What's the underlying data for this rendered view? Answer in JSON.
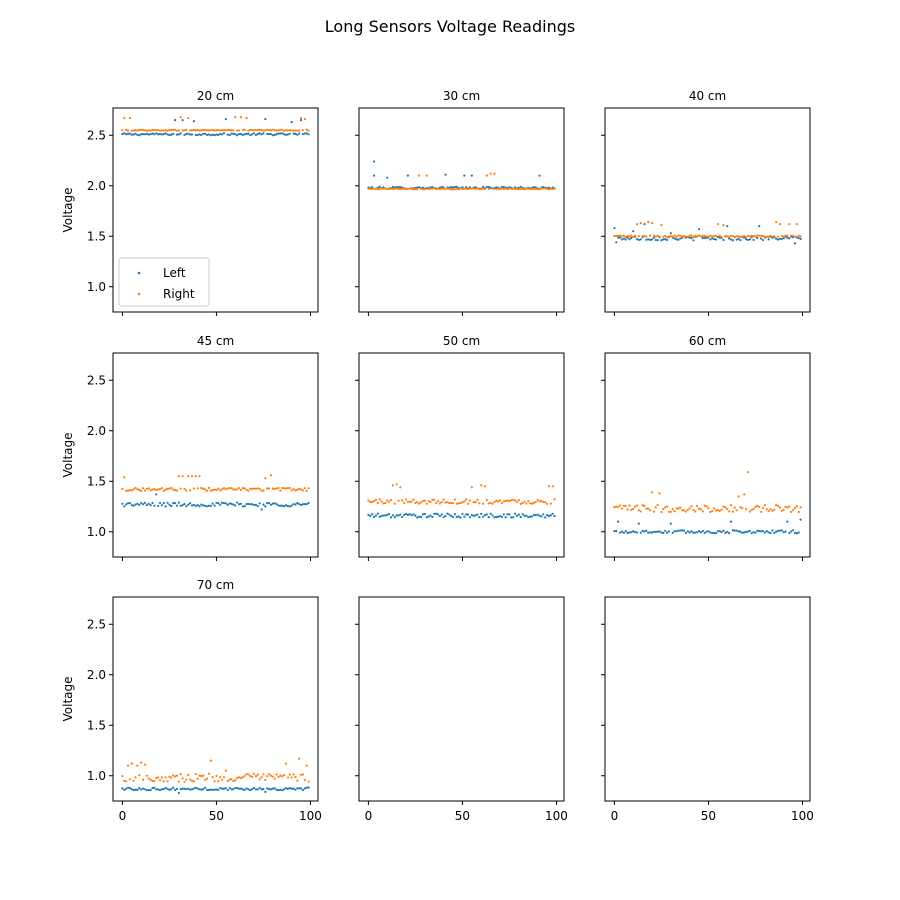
{
  "title": "Long Sensors Voltage Readings",
  "colors": {
    "left": "#1f77b4",
    "right": "#ff7f0e"
  },
  "legend": {
    "placement": "lower-left",
    "entries": [
      "Left",
      "Right"
    ]
  },
  "chart_data": {
    "type": "scatter",
    "layout": "3x3 subplots, shared x and y axes",
    "x": {
      "range": [
        0,
        99
      ],
      "lim": [
        -5,
        104
      ],
      "ticks": [
        0,
        50,
        100
      ],
      "tick_labels": [
        "0",
        "50",
        "100"
      ],
      "label": ""
    },
    "y": {
      "lim": [
        0.75,
        2.77
      ],
      "ticks": [
        1.0,
        1.5,
        2.0,
        2.5
      ],
      "tick_labels": [
        "1.0",
        "1.5",
        "2.0",
        "2.5"
      ],
      "label": "Voltage"
    },
    "panels": [
      {
        "title": "20 cm",
        "series": [
          {
            "name": "Left",
            "base": 2.51,
            "noise": 0.01,
            "spikes": [
              [
                28,
                2.65
              ],
              [
                32,
                2.65
              ],
              [
                38,
                2.64
              ],
              [
                55,
                2.66
              ],
              [
                76,
                2.66
              ],
              [
                90,
                2.63
              ],
              [
                95,
                2.65
              ]
            ]
          },
          {
            "name": "Right",
            "base": 2.55,
            "noise": 0.005,
            "spikes": [
              [
                1,
                2.67
              ],
              [
                4,
                2.67
              ],
              [
                31,
                2.68
              ],
              [
                35,
                2.67
              ],
              [
                60,
                2.68
              ],
              [
                63,
                2.68
              ],
              [
                66,
                2.67
              ],
              [
                95,
                2.67
              ],
              [
                97,
                2.66
              ]
            ]
          }
        ]
      },
      {
        "title": "30 cm",
        "series": [
          {
            "name": "Left",
            "base": 1.98,
            "noise": 0.01,
            "spikes": [
              [
                3,
                2.24
              ],
              [
                3,
                2.1
              ],
              [
                10,
                2.08
              ],
              [
                21,
                2.1
              ],
              [
                41,
                2.11
              ],
              [
                51,
                2.1
              ],
              [
                55,
                2.1
              ],
              [
                91,
                2.1
              ]
            ]
          },
          {
            "name": "Right",
            "base": 1.97,
            "noise": 0.005,
            "spikes": [
              [
                27,
                2.1
              ],
              [
                31,
                2.1
              ],
              [
                63,
                2.1
              ],
              [
                65,
                2.12
              ],
              [
                67,
                2.12
              ]
            ]
          }
        ]
      },
      {
        "title": "40 cm",
        "series": [
          {
            "name": "Left",
            "base": 1.48,
            "noise": 0.02,
            "spikes": [
              [
                0,
                1.58
              ],
              [
                1,
                1.44
              ],
              [
                10,
                1.55
              ],
              [
                16,
                1.62
              ],
              [
                30,
                1.53
              ],
              [
                45,
                1.57
              ],
              [
                60,
                1.6
              ],
              [
                77,
                1.6
              ],
              [
                96,
                1.43
              ]
            ]
          },
          {
            "name": "Right",
            "base": 1.5,
            "noise": 0.008,
            "spikes": [
              [
                12,
                1.62
              ],
              [
                14,
                1.63
              ],
              [
                18,
                1.64
              ],
              [
                20,
                1.63
              ],
              [
                25,
                1.61
              ],
              [
                55,
                1.62
              ],
              [
                58,
                1.61
              ],
              [
                86,
                1.64
              ],
              [
                88,
                1.62
              ],
              [
                93,
                1.62
              ],
              [
                97,
                1.62
              ]
            ]
          }
        ]
      },
      {
        "title": "45 cm",
        "series": [
          {
            "name": "Left",
            "base": 1.27,
            "noise": 0.02,
            "spikes": [
              [
                18,
                1.37
              ],
              [
                74,
                1.22
              ]
            ]
          },
          {
            "name": "Right",
            "base": 1.42,
            "noise": 0.015,
            "spikes": [
              [
                1,
                1.54
              ],
              [
                30,
                1.55
              ],
              [
                32,
                1.55
              ],
              [
                35,
                1.55
              ],
              [
                37,
                1.55
              ],
              [
                39,
                1.55
              ],
              [
                41,
                1.55
              ],
              [
                76,
                1.53
              ],
              [
                79,
                1.56
              ]
            ]
          }
        ]
      },
      {
        "title": "50 cm",
        "series": [
          {
            "name": "Left",
            "base": 1.16,
            "noise": 0.02,
            "spikes": []
          },
          {
            "name": "Right",
            "base": 1.3,
            "noise": 0.025,
            "spikes": [
              [
                13,
                1.46
              ],
              [
                15,
                1.47
              ],
              [
                17,
                1.44
              ],
              [
                55,
                1.44
              ],
              [
                60,
                1.46
              ],
              [
                62,
                1.45
              ],
              [
                96,
                1.45
              ],
              [
                98,
                1.45
              ]
            ]
          }
        ]
      },
      {
        "title": "60 cm",
        "series": [
          {
            "name": "Left",
            "base": 1.0,
            "noise": 0.015,
            "spikes": [
              [
                2,
                1.1
              ],
              [
                13,
                1.08
              ],
              [
                30,
                1.08
              ],
              [
                62,
                1.1
              ],
              [
                92,
                1.1
              ],
              [
                99,
                1.12
              ]
            ]
          },
          {
            "name": "Right",
            "base": 1.23,
            "noise": 0.035,
            "spikes": [
              [
                20,
                1.39
              ],
              [
                24,
                1.38
              ],
              [
                66,
                1.35
              ],
              [
                69,
                1.37
              ],
              [
                71,
                1.59
              ]
            ]
          }
        ]
      },
      {
        "title": "70 cm",
        "series": [
          {
            "name": "Left",
            "base": 0.87,
            "noise": 0.013,
            "spikes": [
              [
                30,
                0.83
              ],
              [
                76,
                0.84
              ]
            ]
          },
          {
            "name": "Right",
            "base": 0.98,
            "noise": 0.04,
            "spikes": [
              [
                3,
                1.1
              ],
              [
                5,
                1.12
              ],
              [
                8,
                1.1
              ],
              [
                10,
                1.13
              ],
              [
                12,
                1.11
              ],
              [
                47,
                1.15
              ],
              [
                55,
                1.05
              ],
              [
                87,
                1.12
              ],
              [
                94,
                1.17
              ],
              [
                98,
                1.1
              ]
            ]
          }
        ]
      },
      {
        "title": "",
        "series": []
      },
      {
        "title": "",
        "series": []
      }
    ]
  }
}
